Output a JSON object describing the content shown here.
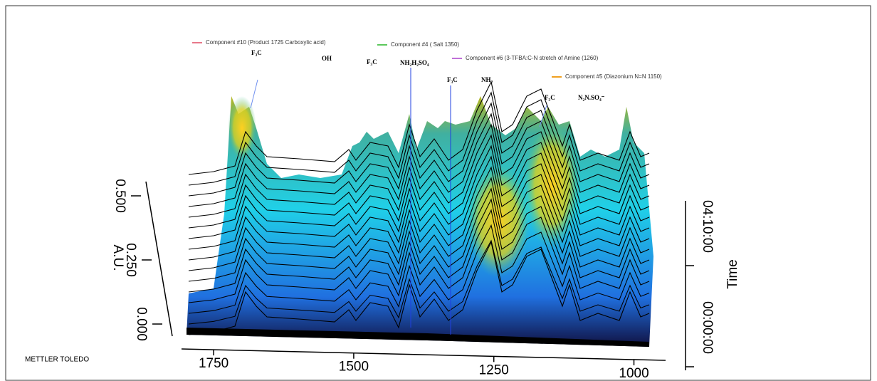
{
  "chart_data": {
    "type": "waterfall3d",
    "watermark": "METTLER TOLEDO",
    "y_label": "A.U.",
    "z_label": "Time",
    "xlim": [
      1820,
      880
    ],
    "xticks": [
      1750,
      1500,
      1250,
      1000
    ],
    "ylim": [
      0,
      0.5
    ],
    "yticks": [
      {
        "value": 0,
        "label": "0.000"
      },
      {
        "value": 0.25,
        "label": "0.250"
      },
      {
        "value": 0.5,
        "label": "0.500"
      }
    ],
    "zticks": [
      "00:00:00",
      "04:10:00"
    ],
    "components": [
      {
        "name": "Component #10 (Product 1725 Carboxylic acid)",
        "color": "#e8788a"
      },
      {
        "name": "Component #4 ( Salt 1350)",
        "color": "#5cc85c"
      },
      {
        "name": "Component #6 (3-TFBA:C-N stretch  of Amine (1260)",
        "color": "#c070d8"
      },
      {
        "name": "Component #5 (Diazonium N=N 1150)",
        "color": "#f0a020"
      }
    ],
    "structures": [
      "F₃C",
      "OH",
      "F₃C",
      "NH₂H₂SO₄",
      "F₃C",
      "NH₂",
      "F₃C",
      "N₂N.SO₄⁻"
    ]
  }
}
